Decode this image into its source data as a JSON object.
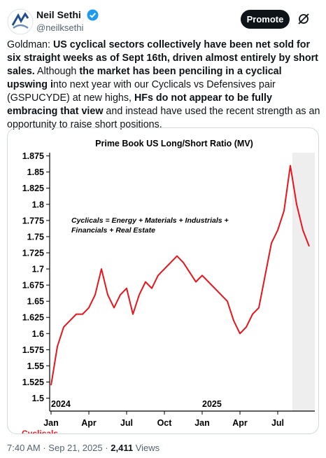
{
  "post": {
    "author": "Neil Sethi",
    "handle": "@neilksethi",
    "button": "Promote",
    "text": [
      {
        "text": "Goldman: ",
        "bold": false
      },
      {
        "text": "US cyclical sectors collectively have been net sold for six straight weeks as of Sept 16th, driven almost entirely by short sales.",
        "bold": true
      },
      {
        "text": " Although ",
        "bold": false
      },
      {
        "text": "the market has been penciling in a cyclical upswing i",
        "bold": true
      },
      {
        "text": "nto next year with our Cyclicals vs Defensives pair (GSPUCYDE) at new highs, ",
        "bold": false
      },
      {
        "text": "HFs do not appear to be fully embracing that view",
        "bold": true
      },
      {
        "text": " and instead have used the recent strength as an opportunity to raise short positions.",
        "bold": false
      }
    ],
    "timestamp": "7:40 AM",
    "date": "Sep 21, 2025",
    "separator": "·",
    "views": "2,411",
    "views_label": "Views"
  },
  "chart_data": {
    "type": "line",
    "title": "Prime Book US Long/Short Ratio (MV)",
    "annotation": [
      "Cyclicals = Energy + Materials + Industrials +",
      "Financials + Real Estate"
    ],
    "categories": [
      "Jan",
      null,
      null,
      null,
      null,
      null,
      "Apr",
      null,
      null,
      null,
      null,
      null,
      "Jul",
      null,
      null,
      null,
      null,
      null,
      "Oct",
      null,
      null,
      null,
      null,
      null,
      "Jan",
      null,
      null,
      null,
      null,
      null,
      "Apr",
      null,
      null,
      null,
      null,
      null,
      "Jul",
      null,
      null,
      null,
      null,
      null
    ],
    "year_labels": [
      {
        "label": "2024",
        "category": 0
      },
      {
        "label": "2025",
        "category": 24
      }
    ],
    "series": [
      {
        "name": "Cyclicals",
        "color": "#e8141c",
        "values": [
          1.52,
          1.58,
          1.61,
          1.62,
          1.63,
          1.63,
          1.64,
          1.66,
          1.7,
          1.66,
          1.64,
          1.66,
          1.67,
          1.63,
          1.66,
          1.68,
          1.67,
          1.69,
          1.7,
          1.71,
          1.72,
          1.71,
          1.695,
          1.68,
          1.69,
          1.68,
          1.67,
          1.66,
          1.65,
          1.62,
          1.6,
          1.61,
          1.63,
          1.64,
          1.69,
          1.74,
          1.76,
          1.79,
          1.86,
          1.8,
          1.76,
          1.735
        ]
      }
    ],
    "ylim": [
      1.48,
      1.88
    ],
    "yticks": [
      1.5,
      1.525,
      1.55,
      1.575,
      1.6,
      1.625,
      1.65,
      1.675,
      1.7,
      1.725,
      1.75,
      1.775,
      1.8,
      1.825,
      1.85,
      1.875
    ],
    "grid": false
  }
}
